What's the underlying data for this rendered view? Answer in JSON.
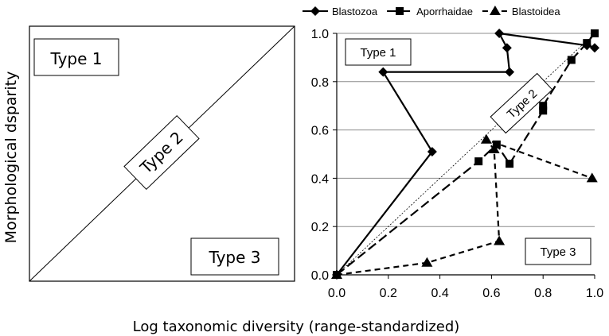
{
  "ylabel": "Morphological dsparity",
  "xlabel": "Log taxonomic diversity (range-standardized)",
  "schematic": {
    "type1_label": "Type 1",
    "type2_label": "Type 2",
    "type3_label": "Type 3"
  },
  "chart_data": {
    "type": "line",
    "xlim": [
      0,
      1
    ],
    "ylim": [
      0,
      1
    ],
    "x_ticks": [
      "0.0",
      "0.2",
      "0.4",
      "0.6",
      "0.8",
      "1.0"
    ],
    "y_ticks": [
      "0.0",
      "0.2",
      "0.4",
      "0.6",
      "0.8",
      "1.0"
    ],
    "grid": "horizontal",
    "legend_position": "top",
    "region_labels": {
      "type1": "Type 1",
      "type2": "Type 2",
      "type3": "Type 3"
    },
    "series": [
      {
        "name": "Blastozoa",
        "marker": "diamond",
        "line": "solid",
        "points": [
          [
            0.0,
            0.0
          ],
          [
            0.37,
            0.51
          ],
          [
            0.18,
            0.84
          ],
          [
            0.67,
            0.84
          ],
          [
            0.66,
            0.94
          ],
          [
            0.63,
            1.0
          ],
          [
            0.97,
            0.95
          ],
          [
            1.0,
            0.94
          ]
        ]
      },
      {
        "name": "Aporrhaidae",
        "marker": "square",
        "line": "dashed-long",
        "points": [
          [
            0.0,
            0.0
          ],
          [
            0.55,
            0.47
          ],
          [
            0.62,
            0.54
          ],
          [
            0.67,
            0.46
          ],
          [
            0.8,
            0.68
          ],
          [
            0.8,
            0.7
          ],
          [
            0.91,
            0.89
          ],
          [
            0.97,
            0.96
          ],
          [
            1.0,
            1.0
          ]
        ]
      },
      {
        "name": "Blastoidea",
        "marker": "triangle",
        "line": "dashed",
        "points": [
          [
            0.0,
            0.0
          ],
          [
            0.35,
            0.05
          ],
          [
            0.63,
            0.14
          ],
          [
            0.61,
            0.52
          ],
          [
            0.58,
            0.56
          ],
          [
            0.99,
            0.4
          ]
        ]
      }
    ]
  }
}
